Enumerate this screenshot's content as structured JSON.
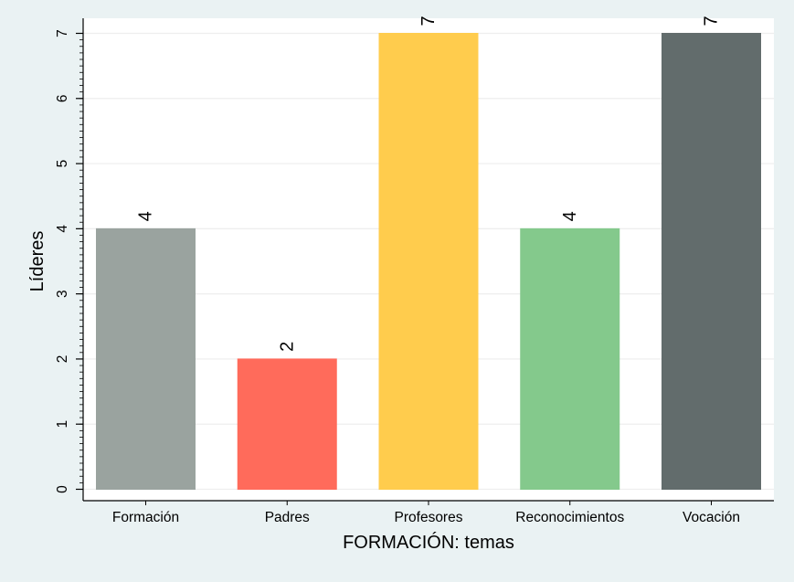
{
  "chart_data": {
    "type": "bar",
    "title": "",
    "xlabel": "FORMACIÓN: temas",
    "ylabel": "Líderes",
    "categories": [
      "Formación",
      "Padres",
      "Profesores",
      "Reconocimientos",
      "Vocación"
    ],
    "values": [
      4,
      2,
      7,
      4,
      7
    ],
    "data_labels": [
      "4",
      "2",
      "7",
      "4",
      "7"
    ],
    "colors": [
      "#9aa39f",
      "#ff6b5b",
      "#ffcc4d",
      "#84c98c",
      "#626c6c"
    ],
    "ylim": [
      0,
      7
    ],
    "yticks": [
      0,
      1,
      2,
      3,
      4,
      5,
      6,
      7
    ],
    "ytick_labels": [
      "0",
      "1",
      "2",
      "3",
      "4",
      "5",
      "6",
      "7"
    ],
    "grid": true,
    "legend": "none"
  }
}
